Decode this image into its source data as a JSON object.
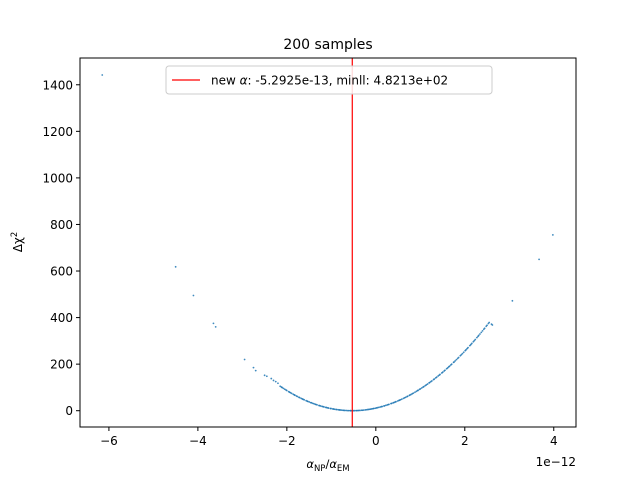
{
  "chart_data": {
    "type": "scatter",
    "title": "200 samples",
    "xlabel": {
      "base": "α",
      "sub1": "NP",
      "slash": "/",
      "base2": "α",
      "sub2": "EM"
    },
    "ylabel": {
      "base": "Δχ",
      "sup": "2"
    },
    "x_offset_text": "1e−12",
    "xlim": [
      -6.65e-12,
      4.5e-12
    ],
    "ylim": [
      -70,
      1515
    ],
    "xticks": [
      -6e-12,
      -4e-12,
      -2e-12,
      0,
      2e-12,
      4e-12
    ],
    "xtick_labels": [
      "−6",
      "−4",
      "−2",
      "0",
      "2",
      "4"
    ],
    "yticks": [
      0,
      200,
      400,
      600,
      800,
      1000,
      1200,
      1400
    ],
    "ytick_labels": [
      "0",
      "200",
      "400",
      "600",
      "800",
      "1000",
      "1200",
      "1400"
    ],
    "grid": false,
    "legend_position": "upper center",
    "legend": {
      "label_prefix": "new ",
      "label_symbol": "α",
      "label_suffix": ": -5.2925e-13, minll: 4.8213e+02"
    },
    "vline": {
      "x": -5.2925e-13,
      "color": "#ff0000"
    },
    "parabola": {
      "vertex_x": -5.2925e-13,
      "curvature": 40.0
    },
    "series": [
      {
        "color": "#1f77b4",
        "x": [
          -6.15e-12,
          -4.5e-12,
          -4.1e-12,
          -3.65e-12,
          -3.6e-12,
          -2.95e-12,
          -2.75e-12,
          -2.7e-12,
          -2.5e-12,
          -2.45e-12,
          -2.35e-12,
          -2.3e-12,
          -2.25e-12,
          -2.2e-12,
          2.6e-12,
          2.62e-12,
          3.07e-12,
          3.67e-12,
          3.98e-12
        ],
        "y": [
          1442,
          618,
          495,
          375,
          360,
          220,
          185,
          172,
          152,
          148,
          138,
          130,
          125,
          118,
          372,
          368,
          472,
          650,
          755
        ]
      }
    ]
  }
}
